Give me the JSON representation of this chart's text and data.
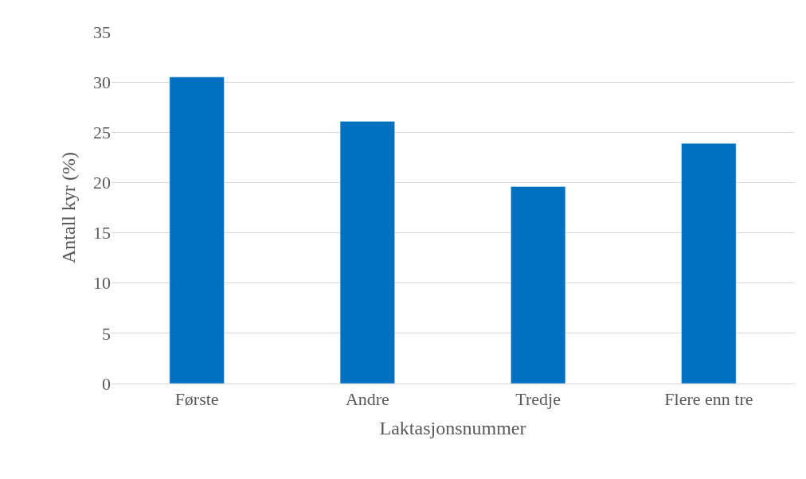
{
  "chart_data": {
    "type": "bar",
    "xlabel": "Laktasjonsnummer",
    "ylabel": "Antall kyr (%)",
    "categories": [
      "Første",
      "Andre",
      "Tredje",
      "Flere enn tre"
    ],
    "values": [
      30.5,
      26.1,
      19.6,
      23.9
    ],
    "color": "#0070c0",
    "ylim": [
      0,
      35
    ],
    "yticks": [
      0,
      5,
      10,
      15,
      20,
      25,
      30,
      35
    ],
    "grid": "y",
    "legend": false
  }
}
